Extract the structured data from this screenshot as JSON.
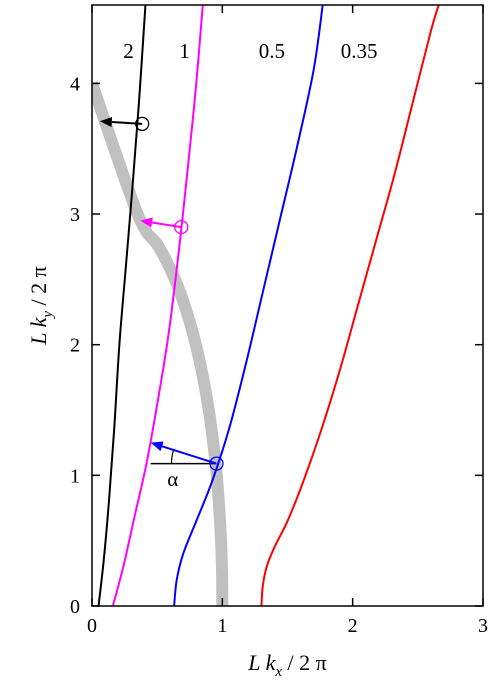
{
  "chart_data": {
    "type": "line",
    "xlabel": {
      "main": "L k",
      "sub": "x",
      "tail": " / 2 π"
    },
    "ylabel": {
      "main": "L k",
      "sub": "y",
      "tail": " / 2 π"
    },
    "xlim": [
      0,
      3
    ],
    "ylim": [
      0,
      4.6
    ],
    "x_ticks": [
      0,
      1,
      2,
      3
    ],
    "y_ticks": [
      0,
      1,
      2,
      3,
      4
    ],
    "x_tick_labels": [
      "0",
      "1",
      "2",
      "3"
    ],
    "y_tick_labels": [
      "0",
      "1",
      "2",
      "3",
      "4"
    ],
    "grid": false,
    "circle": {
      "color": "#c0c0c0",
      "description_label": "",
      "x": [
        1.0,
        0.998,
        0.99,
        0.976,
        0.957,
        0.93,
        0.896,
        0.852,
        0.797,
        0.727,
        0.637,
        0.512,
        0.35,
        0.0
      ],
      "y": [
        0.0,
        0.25,
        0.5,
        0.75,
        1.0,
        1.25,
        1.5,
        1.75,
        2.0,
        2.25,
        2.5,
        2.75,
        3.0,
        4.0
      ]
    },
    "series": [
      {
        "label": "2",
        "color": "#000000",
        "x": [
          0.05,
          0.09,
          0.13,
          0.17,
          0.21,
          0.26,
          0.31,
          0.36,
          0.41
        ],
        "y": [
          0.0,
          0.35,
          0.8,
          1.35,
          2.0,
          2.6,
          3.2,
          3.85,
          4.6
        ]
      },
      {
        "label": "1",
        "color": "#ff00ff",
        "x": [
          0.16,
          0.24,
          0.33,
          0.42,
          0.51,
          0.59,
          0.67,
          0.74,
          0.8,
          0.85
        ],
        "y": [
          0.0,
          0.3,
          0.7,
          1.1,
          1.6,
          2.1,
          2.75,
          3.4,
          4.0,
          4.6
        ]
      },
      {
        "label": "0.5",
        "color": "#0000ff",
        "x": [
          0.63,
          0.65,
          0.7,
          0.8,
          0.92,
          1.05,
          1.18,
          1.31,
          1.44,
          1.57,
          1.7,
          1.77
        ],
        "y": [
          0.0,
          0.2,
          0.4,
          0.65,
          0.95,
          1.35,
          1.85,
          2.4,
          2.95,
          3.5,
          4.1,
          4.6
        ]
      },
      {
        "label": "0.35",
        "color": "#ff0000",
        "x": [
          1.3,
          1.31,
          1.34,
          1.4,
          1.5,
          1.62,
          1.76,
          1.9,
          2.04,
          2.18,
          2.32,
          2.46,
          2.6,
          2.66
        ],
        "y": [
          0.0,
          0.15,
          0.3,
          0.45,
          0.65,
          0.95,
          1.35,
          1.8,
          2.3,
          2.8,
          3.3,
          3.85,
          4.4,
          4.6
        ]
      }
    ],
    "markers": [
      {
        "color": "#000000",
        "x": 0.385,
        "y": 3.69,
        "arrow_to": [
          0.06,
          3.71
        ]
      },
      {
        "color": "#ff00ff",
        "x": 0.685,
        "y": 2.9,
        "arrow_to": [
          0.37,
          2.95
        ]
      },
      {
        "color": "#0000ff",
        "x": 0.955,
        "y": 1.09,
        "arrow_to": [
          0.45,
          1.25
        ]
      }
    ],
    "angle_annotation": {
      "label": "α",
      "reference_line": {
        "x0": 0.45,
        "x1": 0.955,
        "y": 1.09
      },
      "label_at": [
        0.62,
        0.92
      ]
    }
  }
}
